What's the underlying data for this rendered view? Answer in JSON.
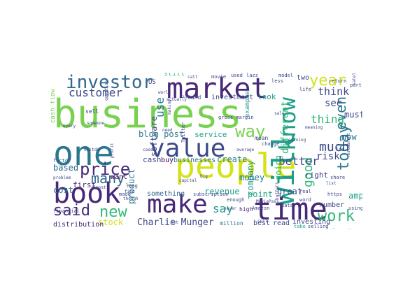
{
  "figure": {
    "type": "word-cloud",
    "colors": {
      "background": "#ffffff",
      "yellow": "#d2e21b",
      "lime": "#7ad151",
      "green": "#35b779",
      "teal": "#1f9e89",
      "ocean": "#2a788e",
      "blue": "#31688e",
      "indigo": "#3e4989",
      "purple": "#482878",
      "dark": "#440154"
    },
    "words": [
      {
        "text": "business",
        "color": "lime"
      },
      {
        "text": "people",
        "color": "yellow"
      },
      {
        "text": "will",
        "color": "teal"
      },
      {
        "text": "one",
        "color": "ocean"
      },
      {
        "text": "time",
        "color": "purple"
      },
      {
        "text": "value",
        "color": "indigo"
      },
      {
        "text": "market",
        "color": "purple"
      },
      {
        "text": "make",
        "color": "purple"
      },
      {
        "text": "book",
        "color": "purple"
      },
      {
        "text": "investor",
        "color": "blue"
      },
      {
        "text": "know",
        "color": "teal"
      },
      {
        "text": "year",
        "color": "yellow"
      },
      {
        "text": "price",
        "color": "purple"
      },
      {
        "text": "way",
        "color": "lime"
      },
      {
        "text": "work",
        "color": "green"
      },
      {
        "text": "today",
        "color": "ocean"
      },
      {
        "text": "new",
        "color": "green"
      },
      {
        "text": "said",
        "color": "purple"
      },
      {
        "text": "customer",
        "color": "indigo"
      },
      {
        "text": "even",
        "color": "ocean"
      },
      {
        "text": "many",
        "color": "blue"
      },
      {
        "text": "much",
        "color": "indigo"
      },
      {
        "text": "thing",
        "color": "green"
      },
      {
        "text": "good",
        "color": "green"
      },
      {
        "text": "say",
        "color": "teal"
      },
      {
        "text": "different",
        "color": "green"
      },
      {
        "text": "better",
        "color": "indigo"
      },
      {
        "text": "Charlie Munger",
        "color": "indigo"
      },
      {
        "text": "use",
        "color": "ocean"
      },
      {
        "text": "think",
        "color": "indigo"
      },
      {
        "text": "software",
        "color": "indigo"
      },
      {
        "text": "product",
        "color": "ocean"
      },
      {
        "text": "company",
        "color": "teal"
      },
      {
        "text": "stock",
        "color": "yellow"
      },
      {
        "text": "money",
        "color": "ocean"
      },
      {
        "text": "risk",
        "color": "indigo"
      },
      {
        "text": "blog post",
        "color": "ocean"
      },
      {
        "text": "cash",
        "color": "indigo"
      },
      {
        "text": "buy",
        "color": "dark"
      },
      {
        "text": "businesses",
        "color": "ocean"
      },
      {
        "text": "create",
        "color": "ocean"
      },
      {
        "text": "service",
        "color": "teal"
      },
      {
        "text": "cost",
        "color": "ocean"
      },
      {
        "text": "based",
        "color": "blue"
      },
      {
        "text": "first",
        "color": "purple"
      },
      {
        "text": "want",
        "color": "dark"
      },
      {
        "text": "must",
        "color": "indigo"
      },
      {
        "text": "see",
        "color": "indigo"
      },
      {
        "text": "now",
        "color": "ocean"
      },
      {
        "text": "going",
        "color": "green"
      },
      {
        "text": "right",
        "color": "indigo"
      },
      {
        "text": "point",
        "color": "teal"
      },
      {
        "text": "great",
        "color": "indigo"
      },
      {
        "text": "two",
        "color": "indigo"
      },
      {
        "text": "distribution",
        "color": "purple"
      },
      {
        "text": "revenue",
        "color": "teal"
      },
      {
        "text": "something",
        "color": "blue"
      },
      {
        "text": "investing",
        "color": "indigo"
      },
      {
        "text": "read",
        "color": "indigo"
      },
      {
        "text": "best",
        "color": "indigo"
      },
      {
        "text": "number",
        "color": "indigo"
      },
      {
        "text": "amp",
        "color": "teal"
      },
      {
        "text": "look",
        "color": "teal"
      },
      {
        "text": "investment",
        "color": "indigo"
      },
      {
        "text": "example",
        "color": "teal"
      },
      {
        "text": "still",
        "color": "green"
      },
      {
        "text": "cash flow",
        "color": "lime"
      },
      {
        "text": "high",
        "color": "purple"
      },
      {
        "text": "million",
        "color": "ocean"
      },
      {
        "text": "subscription",
        "color": "indigo"
      },
      {
        "text": "take",
        "color": "teal"
      },
      {
        "text": "selling",
        "color": "indigo"
      },
      {
        "text": "another",
        "color": "indigo"
      },
      {
        "text": "enough",
        "color": "indigo"
      },
      {
        "text": "capital",
        "color": "indigo"
      },
      {
        "text": "big",
        "color": "indigo"
      },
      {
        "text": "movie",
        "color": "indigo"
      },
      {
        "text": "used",
        "color": "indigo"
      },
      {
        "text": "lazz",
        "color": "indigo"
      },
      {
        "text": "model",
        "color": "indigo"
      },
      {
        "text": "hand",
        "color": "indigo"
      },
      {
        "text": "actually",
        "color": "indigo"
      },
      {
        "text": "gross margin",
        "color": "indigo"
      },
      {
        "text": "mean",
        "color": "indigo"
      },
      {
        "text": "change",
        "color": "indigo"
      },
      {
        "text": "average",
        "color": "indigo"
      },
      {
        "text": "US",
        "color": "indigo"
      },
      {
        "text": "sell",
        "color": "indigo"
      },
      {
        "text": "world",
        "color": "indigo"
      },
      {
        "text": "factor",
        "color": "indigo"
      },
      {
        "text": "Twitter",
        "color": "indigo"
      },
      {
        "text": "less",
        "color": "indigo"
      },
      {
        "text": "Amazon",
        "color": "indigo"
      },
      {
        "text": "return",
        "color": "indigo"
      },
      {
        "text": "life",
        "color": "indigo"
      },
      {
        "text": "real",
        "color": "indigo"
      },
      {
        "text": "share",
        "color": "indigo"
      },
      {
        "text": "https",
        "color": "indigo"
      },
      {
        "text": "word",
        "color": "indigo"
      },
      {
        "text": "data",
        "color": "indigo"
      },
      {
        "text": "using",
        "color": "indigo"
      },
      {
        "text": "part",
        "color": "indigo"
      },
      {
        "text": "lot",
        "color": "indigo"
      },
      {
        "text": "never",
        "color": "indigo"
      },
      {
        "text": "made",
        "color": "indigo"
      },
      {
        "text": "long",
        "color": "indigo"
      },
      {
        "text": "find",
        "color": "indigo"
      },
      {
        "text": "someone",
        "color": "indigo"
      },
      {
        "text": "financial",
        "color": "indigo"
      },
      {
        "text": "though",
        "color": "indigo"
      },
      {
        "text": "almost",
        "color": "indigo"
      },
      {
        "text": "every",
        "color": "indigo"
      },
      {
        "text": "question",
        "color": "indigo"
      },
      {
        "text": "problem",
        "color": "indigo"
      },
      {
        "text": "turn",
        "color": "indigo"
      },
      {
        "text": "sale",
        "color": "indigo"
      },
      {
        "text": "meaning",
        "color": "indigo"
      },
      {
        "text": "satellite",
        "color": "indigo"
      },
      {
        "text": "restaurant",
        "color": "indigo"
      },
      {
        "text": "buffett",
        "color": "indigo"
      },
      {
        "text": "MoviePass",
        "color": "indigo"
      },
      {
        "text": "call",
        "color": "indigo"
      },
      {
        "text": "ebitda",
        "color": "indigo"
      },
      {
        "text": "earning",
        "color": "indigo"
      },
      {
        "text": "need",
        "color": "indigo"
      },
      {
        "text": "case",
        "color": "indigo"
      },
      {
        "text": "other",
        "color": "indigo"
      },
      {
        "text": "list",
        "color": "indigo"
      },
      {
        "text": "net",
        "color": "indigo"
      },
      {
        "text": "profit",
        "color": "indigo"
      },
      {
        "text": "cell",
        "color": "indigo"
      },
      {
        "text": "making",
        "color": "indigo"
      }
    ]
  }
}
